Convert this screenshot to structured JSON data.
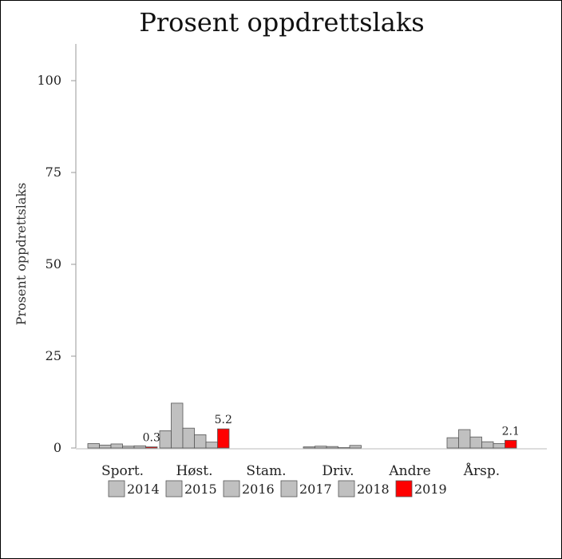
{
  "chart_data": {
    "type": "bar",
    "title": "Prosent oppdrettslaks",
    "ylabel": "Prosent oppdrettslaks",
    "xlabel": "",
    "ylim": [
      0,
      110
    ],
    "yticks": [
      0,
      25,
      50,
      75,
      100
    ],
    "categories": [
      "Sport.",
      "Høst.",
      "Stam.",
      "Driv.",
      "Andre",
      "Årsp."
    ],
    "series": [
      {
        "name": "2014",
        "color": "#c0c0c0",
        "values": [
          1.2,
          4.7,
          0,
          0.3,
          0,
          2.8
        ]
      },
      {
        "name": "2015",
        "color": "#c0c0c0",
        "values": [
          0.8,
          12.2,
          0,
          0.5,
          0,
          5.0
        ]
      },
      {
        "name": "2016",
        "color": "#c0c0c0",
        "values": [
          1.1,
          5.4,
          0,
          0.4,
          0,
          3.0
        ]
      },
      {
        "name": "2017",
        "color": "#c0c0c0",
        "values": [
          0.5,
          3.6,
          0,
          0.1,
          0,
          1.7
        ]
      },
      {
        "name": "2018",
        "color": "#c0c0c0",
        "values": [
          0.6,
          1.6,
          0,
          0.7,
          0,
          1.2
        ]
      },
      {
        "name": "2019",
        "color": "#ff0000",
        "values": [
          0.3,
          5.2,
          0,
          0,
          0,
          2.1
        ]
      }
    ],
    "data_labels": [
      {
        "category": "Sport.",
        "series": "2019",
        "text": "0.3"
      },
      {
        "category": "Høst.",
        "series": "2019",
        "text": "5.2"
      },
      {
        "category": "Årsp.",
        "series": "2019",
        "text": "2.1"
      }
    ],
    "legend_position": "bottom",
    "grid": false
  }
}
